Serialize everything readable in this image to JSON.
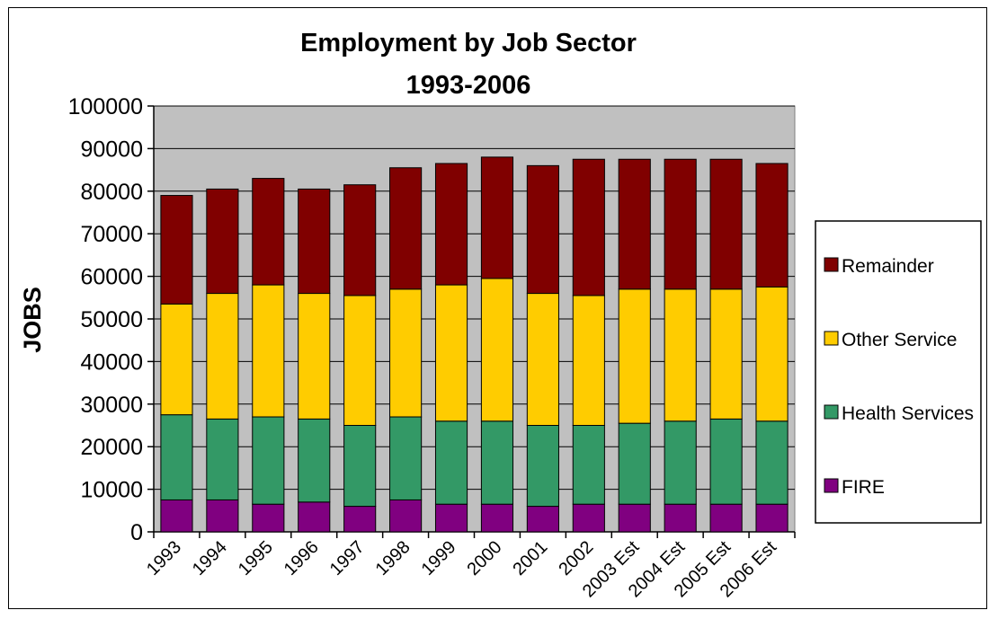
{
  "chart_data": {
    "type": "bar",
    "stacked": true,
    "title": "Employment by Job Sector",
    "subtitle": "1993-2006",
    "ylabel": "JOBS",
    "xlabel": "",
    "ylim": [
      0,
      100000
    ],
    "yticks": [
      "0",
      "10000",
      "20000",
      "30000",
      "40000",
      "50000",
      "60000",
      "70000",
      "80000",
      "90000",
      "100000"
    ],
    "ytick_values": [
      0,
      10000,
      20000,
      30000,
      40000,
      50000,
      60000,
      70000,
      80000,
      90000,
      100000
    ],
    "grid": true,
    "legend_position": "right",
    "categories": [
      "1993",
      "1994",
      "1995",
      "1996",
      "1997",
      "1998",
      "1999",
      "2000",
      "2001",
      "2002",
      "2003 Est",
      "2004 Est",
      "2005 Est",
      "2006 Est"
    ],
    "series": [
      {
        "name": "FIRE",
        "color": "#800080",
        "values": [
          7500,
          7500,
          6500,
          7000,
          6000,
          7500,
          6500,
          6500,
          6000,
          6500,
          6500,
          6500,
          6500,
          6500
        ]
      },
      {
        "name": "Health Services",
        "color": "#339966",
        "values": [
          20000,
          19000,
          20500,
          19500,
          19000,
          19500,
          19500,
          19500,
          19000,
          18500,
          19000,
          19500,
          20000,
          19500
        ]
      },
      {
        "name": "Other Service",
        "color": "#FFCC00",
        "values": [
          26000,
          29500,
          31000,
          29500,
          30500,
          30000,
          32000,
          33500,
          31000,
          30500,
          31500,
          31000,
          30500,
          31500
        ]
      },
      {
        "name": "Remainder",
        "color": "#800000",
        "values": [
          25500,
          24500,
          25000,
          24500,
          26000,
          28500,
          28500,
          28500,
          30000,
          32000,
          30500,
          30500,
          30500,
          29000
        ]
      }
    ],
    "plot_background": "#C0C0C0"
  }
}
